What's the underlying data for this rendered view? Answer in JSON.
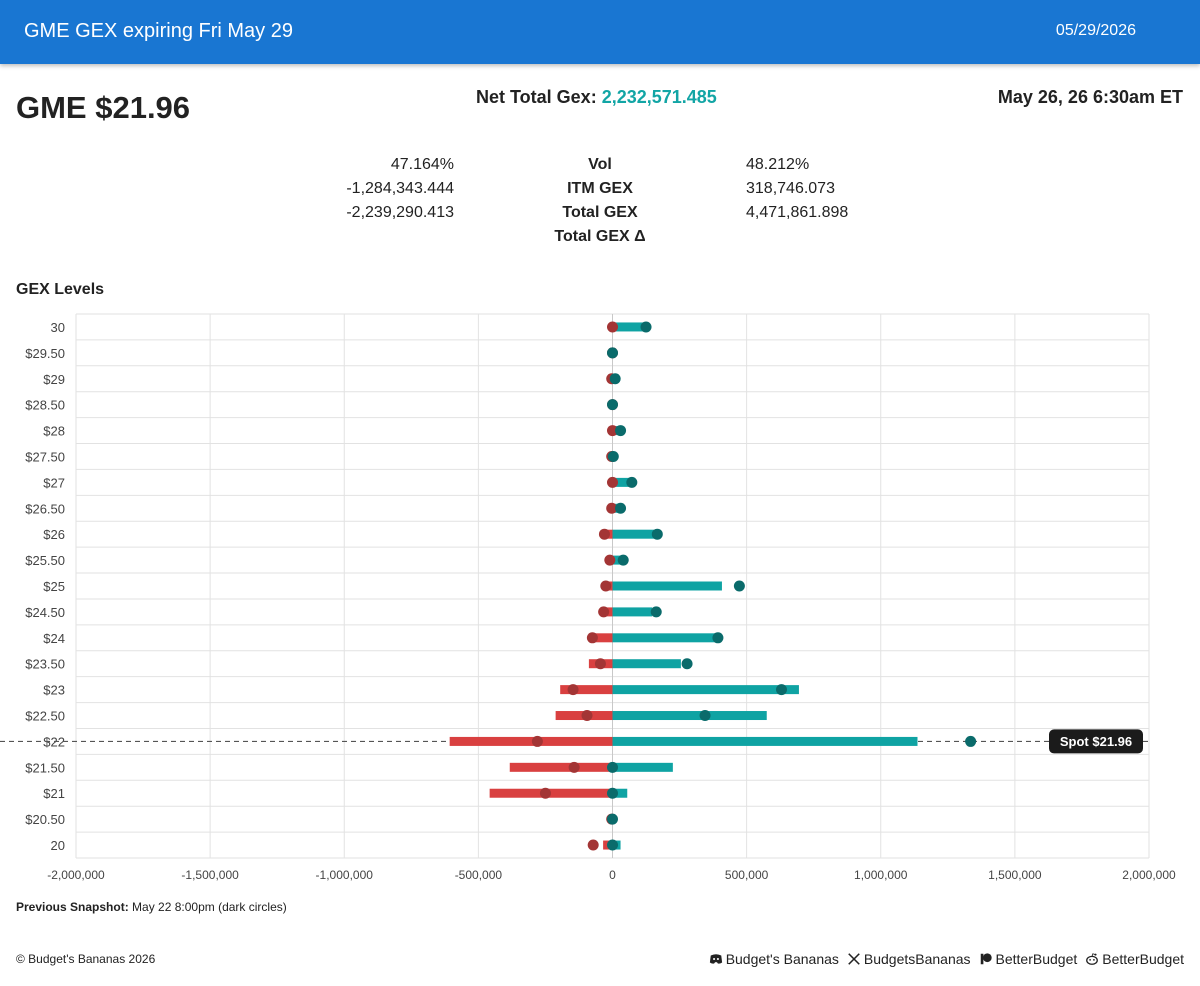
{
  "header": {
    "title": "GME GEX expiring Fri May 29",
    "date": "05/29/2026"
  },
  "ticker": "GME $21.96",
  "net_total": {
    "label": "Net Total Gex:",
    "value": "2,232,571.485"
  },
  "timestamp": "May 26, 26 6:30am ET",
  "stats": [
    {
      "left": "47.164%",
      "label": "Vol",
      "right": "48.212%"
    },
    {
      "left": "-1,284,343.444",
      "label": "ITM GEX",
      "right": "318,746.073"
    },
    {
      "left": "-2,239,290.413",
      "label": "Total GEX",
      "right": "4,471,861.898"
    },
    {
      "left": "",
      "label": "Total GEX Δ",
      "right": ""
    }
  ],
  "section_title": "GEX Levels",
  "chart_data": {
    "type": "bar",
    "orientation": "horizontal",
    "categories": [
      "30",
      "$29.50",
      "$29",
      "$28.50",
      "$28",
      "$27.50",
      "$27",
      "$26.50",
      "$26",
      "$25.50",
      "$25",
      "$24.50",
      "$24",
      "$23.50",
      "$23",
      "$22.50",
      "$22",
      "$21.50",
      "$21",
      "$20.50",
      "20"
    ],
    "series": [
      {
        "color": "#d94040",
        "values": [
          -3000,
          0,
          -2000,
          0,
          -2000,
          -2000,
          -3000,
          -3000,
          -30000,
          -10000,
          -25000,
          -30000,
          -75000,
          -88000,
          -195000,
          -212000,
          -607000,
          -383000,
          -458000,
          -2000,
          -35000
        ]
      },
      {
        "color": "#0fa3a3",
        "values": [
          125000,
          0,
          15000,
          0,
          25000,
          5000,
          65000,
          25000,
          155000,
          35000,
          408000,
          148000,
          385000,
          255000,
          695000,
          575000,
          1137000,
          225000,
          55000,
          0,
          30000
        ]
      },
      {
        "color": "#a33535",
        "values": [
          0,
          0,
          -3000,
          0,
          0,
          -3000,
          0,
          -3000,
          -30000,
          -10000,
          -25000,
          -33000,
          -75000,
          -45000,
          -147000,
          -95000,
          -280000,
          -143000,
          -250000,
          -3000,
          -72000
        ]
      },
      {
        "color": "#0a6b6b",
        "values": [
          125000,
          0,
          10000,
          0,
          30000,
          3000,
          72000,
          30000,
          167000,
          40000,
          473000,
          163000,
          393000,
          278000,
          630000,
          345000,
          1335000,
          0,
          0,
          0,
          0
        ]
      }
    ],
    "xlim": [
      -2000000,
      2000000
    ],
    "xticks": [
      -2000000,
      -1500000,
      -1000000,
      -500000,
      0,
      500000,
      1000000,
      1500000,
      2000000
    ],
    "xtick_labels": [
      "-2,000,000",
      "-1,500,000",
      "-1,000,000",
      "-500,000",
      "0",
      "500,000",
      "1,000,000",
      "1,500,000",
      "2,000,000"
    ],
    "spot": {
      "strike": "$22",
      "label": "Spot $21.96"
    },
    "grid": true
  },
  "note": {
    "label": "Previous Snapshot:",
    "text": "May 22 8:00pm (dark circles)"
  },
  "footer": {
    "copyright": "© Budget's Bananas 2026",
    "links": [
      {
        "icon": "discord-icon",
        "label": "Budget's Bananas"
      },
      {
        "icon": "x-icon",
        "label": "BudgetsBananas"
      },
      {
        "icon": "patreon-icon",
        "label": "BetterBudget"
      },
      {
        "icon": "reddit-icon",
        "label": "BetterBudget"
      }
    ]
  }
}
